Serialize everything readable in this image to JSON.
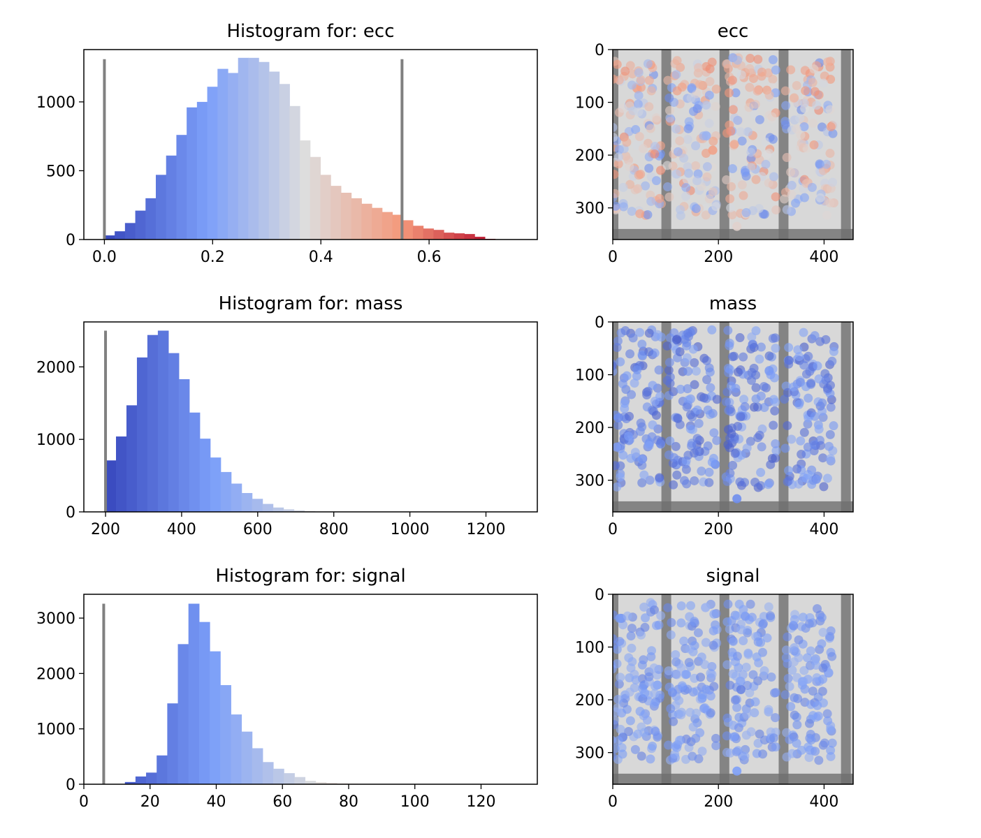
{
  "colors": {
    "threshold_line": "#808080",
    "axes_frame": "#000000",
    "image_background_dark": "#6f6f6f",
    "image_background_light": "#d8d8d8",
    "colormap": "coolwarm"
  },
  "chart_data": [
    {
      "type": "bar",
      "title": "Histogram for: ecc",
      "xlabel": "",
      "ylabel": "",
      "xlim": [
        -0.038,
        0.8
      ],
      "ylim": [
        0,
        1380
      ],
      "x_ticks": [
        0.0,
        0.2,
        0.4,
        0.6
      ],
      "x_tick_labels": [
        "0.0",
        "0.2",
        "0.4",
        "0.6"
      ],
      "y_ticks": [
        0,
        500,
        1000
      ],
      "y_tick_labels": [
        "0",
        "500",
        "1000"
      ],
      "bin_start": 0.0,
      "bin_width": 0.019,
      "values": [
        30,
        60,
        120,
        210,
        300,
        470,
        610,
        760,
        960,
        1000,
        1110,
        1240,
        1210,
        1320,
        1320,
        1290,
        1220,
        1130,
        970,
        720,
        600,
        470,
        390,
        340,
        300,
        260,
        230,
        200,
        180,
        140,
        100,
        80,
        70,
        50,
        45,
        40,
        20,
        5,
        0
      ],
      "threshold_lines": [
        0.0,
        0.55
      ],
      "threshold_height": 1310,
      "grid": false,
      "legend": "none"
    },
    {
      "type": "bar",
      "title": "Histogram for: mass",
      "xlabel": "",
      "ylabel": "",
      "xlim": [
        143,
        1335
      ],
      "ylim": [
        0,
        2620
      ],
      "x_ticks": [
        200,
        400,
        600,
        800,
        1000,
        1200
      ],
      "x_tick_labels": [
        "200",
        "400",
        "600",
        "800",
        "1000",
        "1200"
      ],
      "y_ticks": [
        0,
        1000,
        2000
      ],
      "y_tick_labels": [
        "0",
        "1000",
        "2000"
      ],
      "bin_start": 200,
      "bin_width": 27.5,
      "values": [
        710,
        1040,
        1470,
        2130,
        2440,
        2500,
        2190,
        1830,
        1370,
        1010,
        750,
        550,
        390,
        260,
        180,
        110,
        60,
        35,
        20,
        10,
        5,
        3,
        2,
        1,
        0,
        0,
        0,
        0,
        0,
        0,
        0,
        0,
        0,
        0,
        0,
        0,
        0,
        0,
        0,
        0
      ],
      "threshold_lines": [
        200
      ],
      "threshold_height": 2500,
      "grid": false,
      "legend": "none"
    },
    {
      "type": "bar",
      "title": "Histogram for: signal",
      "xlabel": "",
      "ylabel": "",
      "xlim": [
        0,
        137
      ],
      "ylim": [
        0,
        3430
      ],
      "x_ticks": [
        0,
        20,
        40,
        60,
        80,
        100,
        120
      ],
      "x_tick_labels": [
        "0",
        "20",
        "40",
        "60",
        "80",
        "100",
        "120"
      ],
      "y_ticks": [
        0,
        1000,
        2000,
        3000
      ],
      "y_tick_labels": [
        "0",
        "1000",
        "2000",
        "3000"
      ],
      "bin_start": 6,
      "bin_width": 3.2,
      "values": [
        0,
        5,
        40,
        140,
        210,
        520,
        1460,
        2530,
        3260,
        2930,
        2400,
        1790,
        1260,
        950,
        650,
        400,
        280,
        200,
        130,
        60,
        35,
        20,
        12,
        8,
        5,
        3,
        2,
        1,
        0,
        0,
        0,
        0,
        0,
        0,
        0,
        0,
        0,
        0,
        0,
        0
      ],
      "threshold_lines": [
        6
      ],
      "threshold_height": 3260,
      "grid": false,
      "legend": "none"
    },
    {
      "type": "scatter",
      "title": "ecc",
      "xlabel": "",
      "ylabel": "",
      "xlim": [
        0,
        455
      ],
      "ylim": [
        360,
        0
      ],
      "x_ticks": [
        0,
        200,
        400
      ],
      "x_tick_labels": [
        "0",
        "200",
        "400"
      ],
      "y_ticks": [
        0,
        100,
        200,
        300
      ],
      "y_tick_labels": [
        "0",
        "100",
        "200",
        "300"
      ],
      "point_color_range": [
        0.18,
        0.78
      ],
      "columns_x": [
        45,
        150,
        262,
        372
      ],
      "grid": false
    },
    {
      "type": "scatter",
      "title": "mass",
      "xlabel": "",
      "ylabel": "",
      "xlim": [
        0,
        455
      ],
      "ylim": [
        360,
        0
      ],
      "x_ticks": [
        0,
        200,
        400
      ],
      "x_tick_labels": [
        "0",
        "200",
        "400"
      ],
      "y_ticks": [
        0,
        100,
        200,
        300
      ],
      "y_tick_labels": [
        "0",
        "100",
        "200",
        "300"
      ],
      "point_color_range": [
        0.05,
        0.3
      ],
      "columns_x": [
        45,
        150,
        262,
        372
      ],
      "grid": false
    },
    {
      "type": "scatter",
      "title": "signal",
      "xlabel": "",
      "ylabel": "",
      "xlim": [
        0,
        455
      ],
      "ylim": [
        360,
        0
      ],
      "x_ticks": [
        0,
        200,
        400
      ],
      "x_tick_labels": [
        "0",
        "200",
        "400"
      ],
      "y_ticks": [
        0,
        100,
        200,
        300
      ],
      "y_tick_labels": [
        "0",
        "100",
        "200",
        "300"
      ],
      "point_color_range": [
        0.15,
        0.33
      ],
      "columns_x": [
        45,
        150,
        262,
        372
      ],
      "grid": false
    }
  ]
}
